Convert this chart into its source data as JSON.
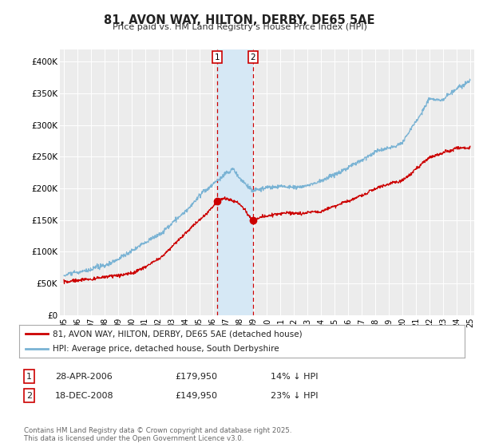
{
  "title": "81, AVON WAY, HILTON, DERBY, DE65 5AE",
  "subtitle": "Price paid vs. HM Land Registry's House Price Index (HPI)",
  "ylim": [
    0,
    420000
  ],
  "yticks": [
    0,
    50000,
    100000,
    150000,
    200000,
    250000,
    300000,
    350000,
    400000
  ],
  "ytick_labels": [
    "£0",
    "£50K",
    "£100K",
    "£150K",
    "£200K",
    "£250K",
    "£300K",
    "£350K",
    "£400K"
  ],
  "x_start_year": 1995,
  "x_end_year": 2025,
  "hpi_color": "#7ab3d4",
  "price_color": "#cc0000",
  "marker1_date": 2006.32,
  "marker2_date": 2008.96,
  "marker1_price": 179950,
  "marker2_price": 149950,
  "legend_line1": "81, AVON WAY, HILTON, DERBY, DE65 5AE (detached house)",
  "legend_line2": "HPI: Average price, detached house, South Derbyshire",
  "table_row1": [
    "1",
    "28-APR-2006",
    "£179,950",
    "14% ↓ HPI"
  ],
  "table_row2": [
    "2",
    "18-DEC-2008",
    "£149,950",
    "23% ↓ HPI"
  ],
  "footer": "Contains HM Land Registry data © Crown copyright and database right 2025.\nThis data is licensed under the Open Government Licence v3.0.",
  "bg_color": "#ffffff",
  "plot_bg_color": "#ececec",
  "highlight_color": "#d6e8f5"
}
